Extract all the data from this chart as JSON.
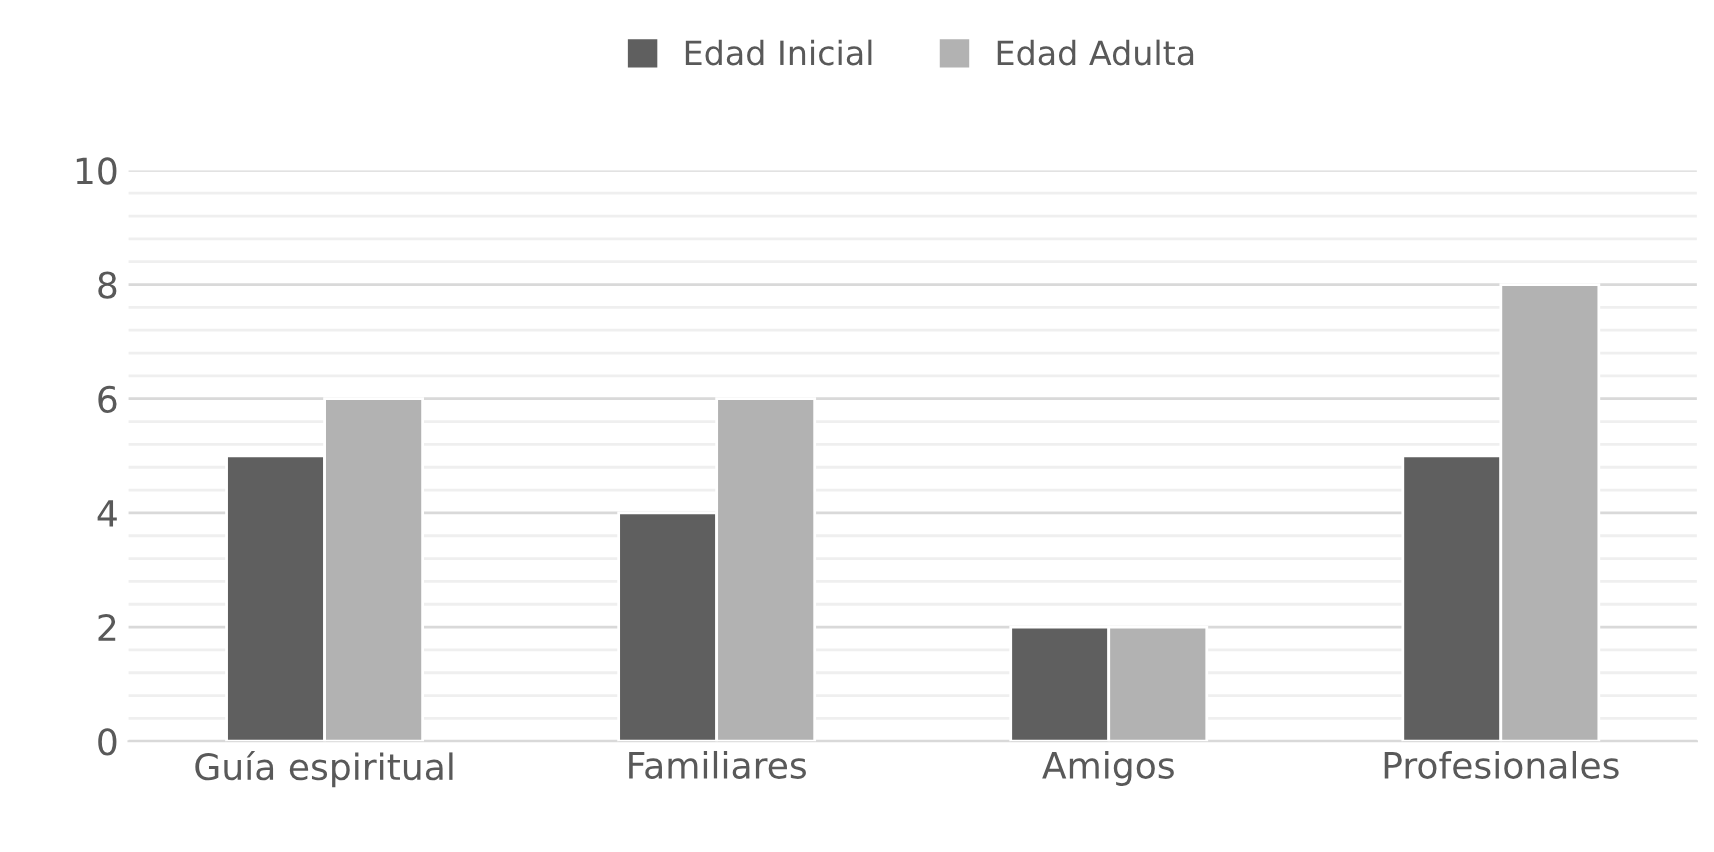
{
  "chart_data": {
    "type": "bar",
    "categories": [
      "Guía espiritual",
      "Familiares",
      "Amigos",
      "Profesionales"
    ],
    "series": [
      {
        "name": "Edad Inicial",
        "color": "#5f5f5f",
        "values": [
          5,
          4,
          2,
          5
        ]
      },
      {
        "name": "Edad Adulta",
        "color": "#b2b2b2",
        "values": [
          6,
          6,
          2,
          8
        ]
      }
    ],
    "ylim": [
      0,
      10
    ],
    "yticks": [
      0,
      {
        "value": 0.4,
        "label": null
      },
      {
        "value": 0.8,
        "label": null
      },
      {
        "value": 1.2,
        "label": null
      },
      {
        "value": 1.6,
        "label": null
      },
      2,
      {
        "value": 2.4,
        "label": null
      },
      {
        "value": 2.8,
        "label": null
      },
      {
        "value": 3.2,
        "label": null
      },
      {
        "value": 3.6,
        "label": null
      },
      4,
      {
        "value": 4.4,
        "label": null
      },
      {
        "value": 4.8,
        "label": null
      },
      {
        "value": 5.2,
        "label": null
      },
      {
        "value": 5.6,
        "label": null
      },
      6,
      {
        "value": 6.4,
        "label": null
      },
      {
        "value": 6.8,
        "label": null
      },
      {
        "value": 7.2,
        "label": null
      },
      {
        "value": 7.6,
        "label": null
      },
      8,
      {
        "value": 8.4,
        "label": null
      },
      {
        "value": 8.8,
        "label": null
      },
      {
        "value": 9.2,
        "label": null
      },
      {
        "value": 9.6,
        "label": null
      },
      10
    ],
    "grid": "y",
    "legend": "top"
  }
}
